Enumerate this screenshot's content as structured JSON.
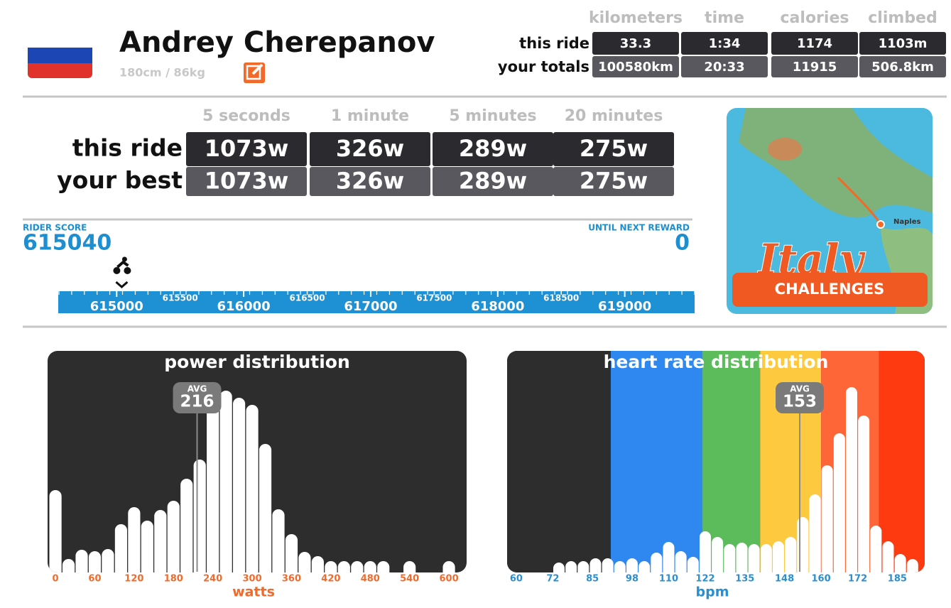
{
  "profile": {
    "name": "Andrey Cherepanov",
    "stats": "180cm / 86kg"
  },
  "ride_summary": {
    "columns": [
      "kilometers",
      "time",
      "calories",
      "climbed"
    ],
    "rows": [
      {
        "label": "this ride",
        "cells": [
          "33.3",
          "1:34",
          "1174",
          "1103m"
        ]
      },
      {
        "label": "your totals",
        "cells": [
          "100580km",
          "20:33",
          "11915",
          "506.8km"
        ]
      }
    ]
  },
  "power_summary": {
    "columns": [
      "5 seconds",
      "1 minute",
      "5 minutes",
      "20 minutes"
    ],
    "rows": [
      {
        "label": "this ride",
        "cells": [
          "1073w",
          "326w",
          "289w",
          "275w"
        ]
      },
      {
        "label": "your best",
        "cells": [
          "1073w",
          "326w",
          "289w",
          "275w"
        ]
      }
    ]
  },
  "rider_score": {
    "label": "RIDER SCORE",
    "value": 615040,
    "next_label": "UNTIL NEXT REWARD",
    "next_value": 0,
    "lim": [
      614540,
      619550
    ],
    "ticks": [
      615000,
      616000,
      617000,
      618000,
      619000
    ],
    "minor_ticks": [
      615500,
      616500,
      617500,
      618500
    ]
  },
  "challenge": {
    "title": "Italy",
    "place": "Naples",
    "button": "CHALLENGES"
  },
  "chart_data": [
    {
      "type": "bar",
      "title": "power distribution",
      "x_label": "watts",
      "x": [
        0,
        20,
        40,
        60,
        80,
        100,
        120,
        140,
        160,
        180,
        200,
        220,
        240,
        260,
        280,
        300,
        320,
        340,
        360,
        380,
        400,
        420,
        440,
        460,
        480,
        500,
        520,
        540,
        560,
        580,
        600
      ],
      "values": [
        115,
        18,
        31,
        29,
        32,
        67,
        91,
        72,
        87,
        100,
        131,
        158,
        250,
        255,
        245,
        235,
        180,
        88,
        53,
        28,
        22,
        15,
        15,
        15,
        15,
        15,
        0,
        15,
        0,
        0,
        15
      ],
      "xlim": [
        -12,
        627
      ],
      "ylim": [
        0,
        300
      ],
      "xticks": [
        0,
        60,
        120,
        180,
        240,
        300,
        360,
        420,
        480,
        540,
        600
      ],
      "color": "#ffffff",
      "background": "#2d2d2d",
      "tick_color": "#f26a2a",
      "average": {
        "label": "AVG",
        "value": 216
      }
    },
    {
      "type": "bar",
      "title": "heart rate distribution",
      "x_label": "bpm",
      "x": [
        74,
        78,
        82,
        86,
        90,
        94,
        98,
        102,
        106,
        110,
        114,
        118,
        122,
        126,
        130,
        134,
        138,
        142,
        146,
        150,
        154,
        158,
        162,
        166,
        170,
        174,
        178,
        182,
        186,
        190
      ],
      "values": [
        13,
        15,
        15,
        19,
        19,
        15,
        19,
        15,
        27,
        42,
        29,
        21,
        57,
        49,
        39,
        41,
        39,
        39,
        43,
        49,
        77,
        109,
        150,
        195,
        260,
        220,
        65,
        43,
        25,
        18
      ],
      "xlim": [
        57,
        194
      ],
      "ylim": [
        0,
        300
      ],
      "xticks": [
        60,
        72,
        85,
        98,
        110,
        122,
        135,
        148,
        160,
        172,
        185
      ],
      "color": "#ffffff",
      "background": "#2d2d2d",
      "tick_color": "#2a8fd0",
      "zones": [
        {
          "from": 57,
          "to": 91,
          "color": "#2d2d2d"
        },
        {
          "from": 91,
          "to": 121,
          "color": "#2f88f0"
        },
        {
          "from": 121,
          "to": 140,
          "color": "#5cbb5a"
        },
        {
          "from": 140,
          "to": 160,
          "color": "#fdc93f"
        },
        {
          "from": 160,
          "to": 179,
          "color": "#fe6637"
        },
        {
          "from": 179,
          "to": 194,
          "color": "#fe3a10"
        }
      ],
      "average": {
        "label": "AVG",
        "value": 153
      }
    }
  ]
}
